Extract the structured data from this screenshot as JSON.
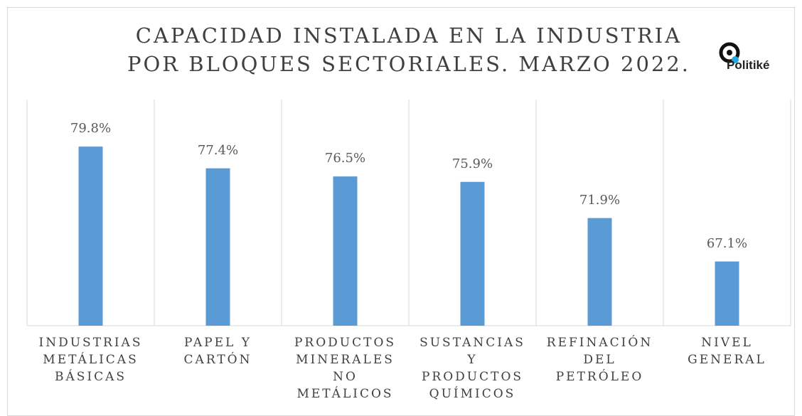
{
  "chart_data": {
    "type": "bar",
    "title": "CAPACIDAD INSTALADA EN LA INDUSTRIA POR BLOQUES SECTORIALES. MARZO 2022.",
    "logo": "Politiké",
    "categories": [
      "INDUSTRIAS METÁLICAS BÁSICAS",
      "PAPEL Y CARTÓN",
      "PRODUCTOS MINERALES NO METÁLICOS",
      "SUSTANCIAS Y PRODUCTOS QUÍMICOS",
      "REFINACIÓN DEL PETRÓLEO",
      "NIVEL GENERAL"
    ],
    "values": [
      79.8,
      77.4,
      76.5,
      75.9,
      71.9,
      67.1
    ],
    "value_labels": [
      "79.8%",
      "77.4%",
      "76.5%",
      "75.9%",
      "71.9%",
      "67.1%"
    ],
    "color": "#5b9bd5",
    "ylim": [
      60,
      85
    ]
  }
}
